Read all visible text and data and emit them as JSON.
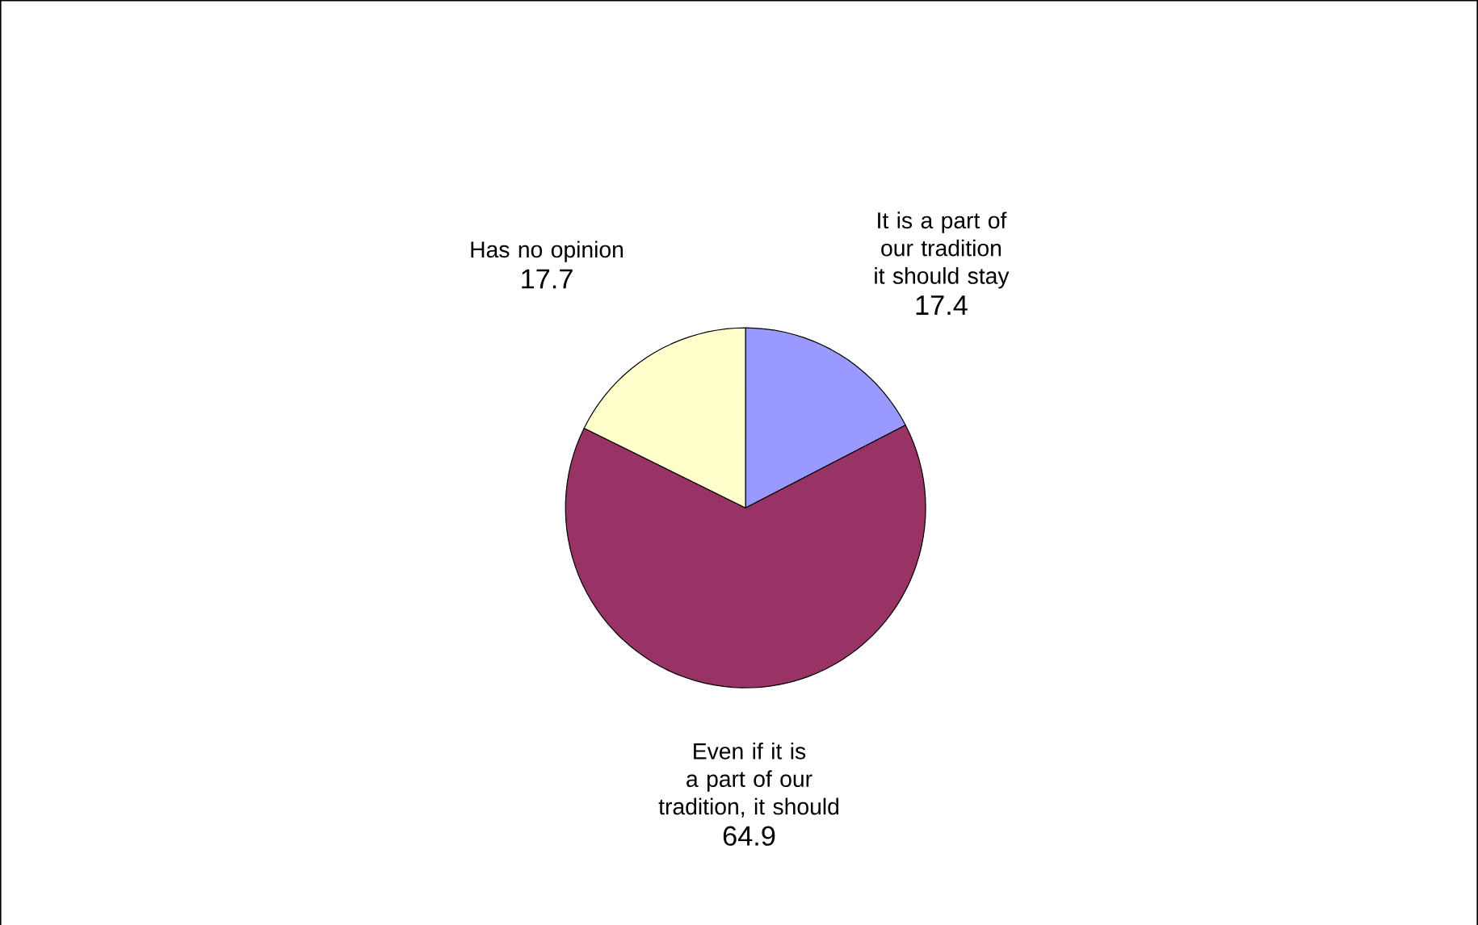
{
  "chart_data": {
    "type": "pie",
    "categories": [
      "It is a part of our tradition it should stay",
      "Even if it is a part of our tradition, it should",
      "Has no opinion"
    ],
    "values": [
      17.4,
      64.9,
      17.7
    ],
    "colors": [
      "#9999ff",
      "#993366",
      "#ffffcc"
    ],
    "data_labels": true
  }
}
